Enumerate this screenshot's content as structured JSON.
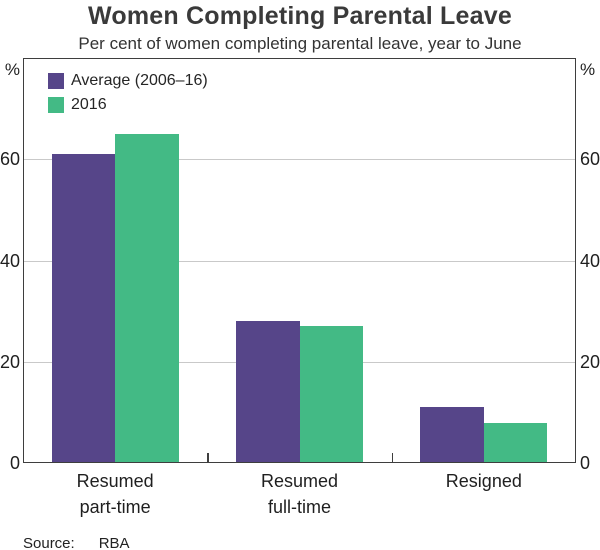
{
  "title": "Women Completing Parental Leave",
  "subtitle": "Per cent of women completing parental leave, year to June",
  "source": {
    "label": "Source:",
    "value": "RBA"
  },
  "colors": {
    "purple": "#564589",
    "green": "#43BA85",
    "grid": "#c9c9c9",
    "frame": "#3e3e3e",
    "text": "#1f1f1f",
    "title_text": "#3a3a3a"
  },
  "chart_data": {
    "type": "bar",
    "title": "Women Completing Parental Leave",
    "subtitle": "Per cent of women completing parental leave, year to June",
    "categories": [
      "Resumed part-time",
      "Resumed full-time",
      "Resigned"
    ],
    "categories_multiline": [
      [
        "Resumed",
        "part-time"
      ],
      [
        "Resumed",
        "full-time"
      ],
      [
        "Resigned"
      ]
    ],
    "series": [
      {
        "name": "Average (2006–16)",
        "color": "#564589",
        "values": [
          61,
          28,
          11
        ]
      },
      {
        "name": "2016",
        "color": "#43BA85",
        "values": [
          65,
          27,
          8
        ]
      }
    ],
    "xlabel": "",
    "ylabel": "%",
    "y_unit_left": "%",
    "y_unit_right": "%",
    "ylim": [
      0,
      80
    ],
    "yticks": [
      0,
      20,
      40,
      60
    ],
    "grid": true,
    "legend_position": "top-left-inside",
    "source": "Source: RBA"
  }
}
